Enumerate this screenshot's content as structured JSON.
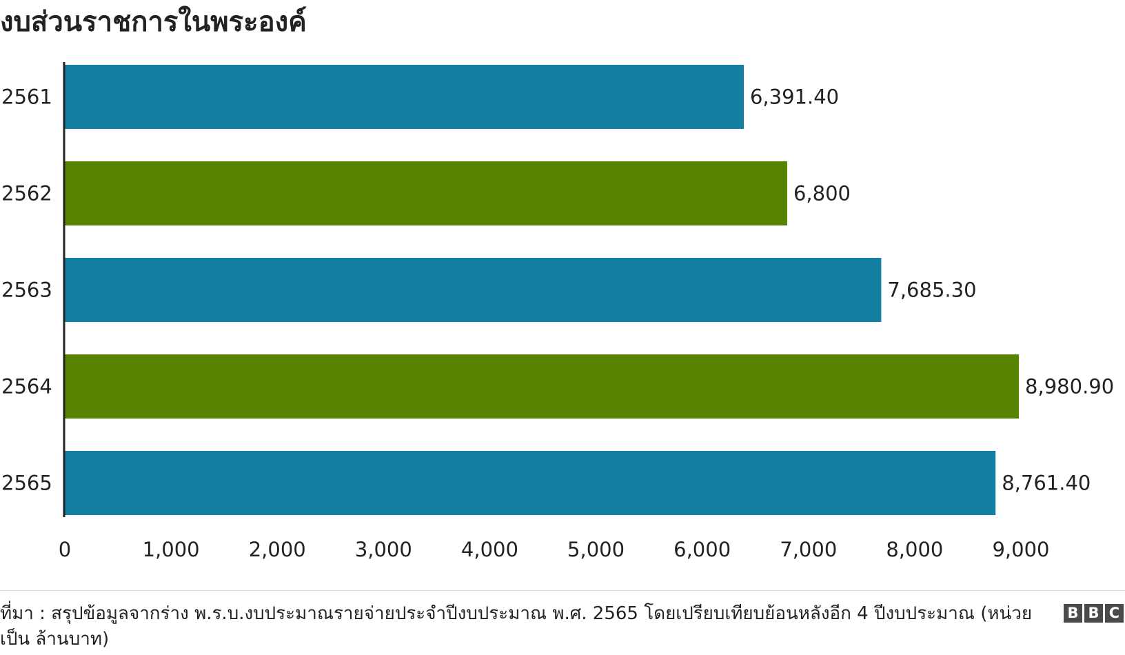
{
  "title": "งบส่วนราชการในพระองค์",
  "chart_data": {
    "type": "bar",
    "orientation": "horizontal",
    "title": "งบส่วนราชการในพระองค์",
    "categories": [
      "2561",
      "2562",
      "2563",
      "2564",
      "2565"
    ],
    "values": [
      6391.4,
      6800,
      7685.3,
      8980.9,
      8761.4
    ],
    "value_labels": [
      "6,391.40",
      "6,800",
      "7,685.30",
      "8,980.90",
      "8,761.40"
    ],
    "bar_colors": [
      "#1380a1",
      "#588300",
      "#1380a1",
      "#588300",
      "#1380a1"
    ],
    "xlim": [
      0,
      9000
    ],
    "xticks": [
      0,
      1000,
      2000,
      3000,
      4000,
      5000,
      6000,
      7000,
      8000,
      9000
    ],
    "xtick_labels": [
      "0",
      "1,000",
      "2,000",
      "3,000",
      "4,000",
      "5,000",
      "6,000",
      "7,000",
      "8,000",
      "9,000"
    ],
    "grid": false,
    "legend": "none"
  },
  "source": "ที่มา : สรุปข้อมูลจากร่าง พ.ร.บ.งบประมาณรายจ่ายประจำปีงบประมาณ พ.ศ. 2565 โดยเปรียบเทียบย้อนหลังอีก 4 ปีงบประมาณ (หน่วยเป็น ล้านบาท)",
  "logo": {
    "letters": [
      "B",
      "B",
      "C"
    ]
  }
}
